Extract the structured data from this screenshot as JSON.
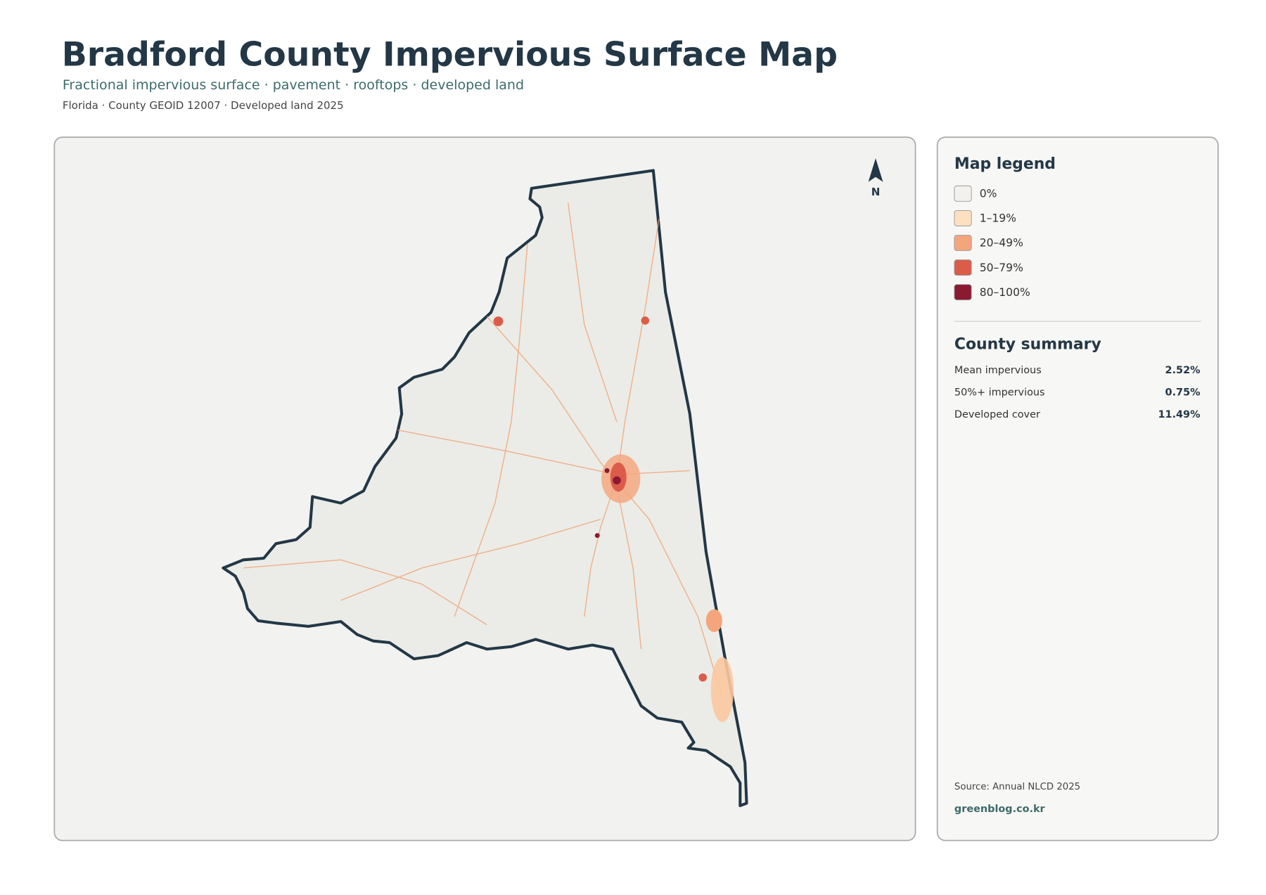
{
  "header": {
    "title": "Bradford County Impervious Surface Map",
    "subtitle": "Fractional impervious surface · pavement · rooftops · developed land",
    "meta": "Florida · County GEOID 12007 · Developed land 2025"
  },
  "map": {
    "north_label": "N"
  },
  "legend": {
    "title": "Map legend",
    "items": [
      {
        "label": "0%",
        "color": "#f2f1ed"
      },
      {
        "label": "1–19%",
        "color": "#fde0c0"
      },
      {
        "label": "20–49%",
        "color": "#f5a57b"
      },
      {
        "label": "50–79%",
        "color": "#dc5c4a"
      },
      {
        "label": "80–100%",
        "color": "#8b1a30"
      }
    ]
  },
  "summary": {
    "title": "County summary",
    "rows": [
      [
        "Mean impervious",
        "2.52%"
      ],
      [
        "50%+ impervious",
        "0.75%"
      ],
      [
        "Developed cover",
        "11.49%"
      ]
    ]
  },
  "footer": {
    "source": "Source: Annual NLCD 2025",
    "credit": "greenblog.co.kr"
  }
}
